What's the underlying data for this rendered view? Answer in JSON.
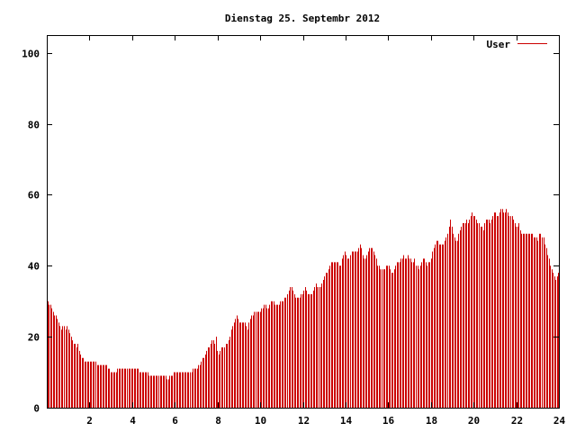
{
  "chart_data": {
    "type": "bar",
    "title": "Dienstag 25. Septembr 2012",
    "xlabel": "",
    "ylabel": "",
    "xlim": [
      0,
      24
    ],
    "ylim": [
      0,
      105
    ],
    "xticks": [
      2,
      4,
      6,
      8,
      10,
      12,
      14,
      16,
      18,
      20,
      22,
      24
    ],
    "yticks": [
      0,
      20,
      40,
      60,
      80,
      100
    ],
    "grid": false,
    "legend_position": "top-right",
    "series": [
      {
        "name": "User",
        "color": "#cc0000",
        "values": [
          30,
          29,
          29,
          28,
          27,
          26,
          26,
          25,
          24,
          23,
          22,
          23,
          23,
          22,
          23,
          22,
          21,
          20,
          19,
          18,
          18,
          17,
          18,
          16,
          15,
          14,
          14,
          13,
          13,
          13,
          13,
          13,
          13,
          13,
          13,
          13,
          12,
          12,
          12,
          12,
          12,
          12,
          12,
          12,
          11,
          11,
          10,
          10,
          10,
          10,
          10,
          11,
          11,
          11,
          11,
          11,
          11,
          11,
          11,
          11,
          11,
          11,
          11,
          11,
          11,
          11,
          11,
          10,
          10,
          10,
          10,
          10,
          10,
          10,
          9,
          9,
          9,
          9,
          9,
          9,
          9,
          9,
          9,
          9,
          9,
          9,
          9,
          8,
          8,
          9,
          9,
          9,
          10,
          10,
          10,
          10,
          10,
          10,
          10,
          10,
          10,
          10,
          10,
          10,
          10,
          10,
          11,
          11,
          11,
          11,
          12,
          12,
          13,
          14,
          14,
          15,
          16,
          17,
          17,
          18,
          19,
          19,
          18,
          20,
          16,
          15,
          16,
          17,
          17,
          17,
          18,
          18,
          19,
          20,
          22,
          23,
          24,
          25,
          26,
          25,
          24,
          24,
          24,
          24,
          24,
          23,
          22,
          24,
          25,
          26,
          26,
          27,
          27,
          27,
          27,
          27,
          28,
          28,
          29,
          29,
          28,
          28,
          29,
          30,
          30,
          30,
          29,
          29,
          29,
          29,
          30,
          30,
          30,
          31,
          31,
          32,
          33,
          34,
          34,
          33,
          32,
          31,
          31,
          31,
          31,
          32,
          32,
          33,
          34,
          33,
          32,
          32,
          32,
          32,
          33,
          34,
          35,
          34,
          34,
          34,
          35,
          36,
          37,
          38,
          38,
          39,
          40,
          41,
          41,
          41,
          41,
          41,
          41,
          40,
          40,
          42,
          43,
          44,
          43,
          42,
          42,
          43,
          44,
          44,
          44,
          44,
          44,
          45,
          46,
          45,
          43,
          42,
          42,
          43,
          44,
          45,
          45,
          45,
          44,
          43,
          42,
          40,
          40,
          39,
          39,
          39,
          39,
          40,
          40,
          40,
          39,
          38,
          38,
          39,
          40,
          41,
          41,
          41,
          42,
          42,
          43,
          42,
          42,
          43,
          42,
          42,
          41,
          41,
          42,
          40,
          40,
          39,
          40,
          41,
          42,
          42,
          41,
          40,
          41,
          41,
          42,
          44,
          45,
          46,
          47,
          47,
          46,
          46,
          46,
          46,
          47,
          48,
          49,
          51,
          53,
          51,
          49,
          48,
          47,
          47,
          49,
          50,
          51,
          52,
          52,
          52,
          53,
          52,
          53,
          54,
          55,
          54,
          54,
          53,
          52,
          52,
          51,
          51,
          50,
          52,
          53,
          53,
          53,
          52,
          53,
          54,
          55,
          55,
          54,
          54,
          55,
          56,
          56,
          55,
          55,
          56,
          55,
          54,
          54,
          54,
          53,
          52,
          51,
          51,
          52,
          50,
          49,
          49,
          49,
          49,
          49,
          49,
          49,
          49,
          49,
          48,
          48,
          48,
          47,
          49,
          49,
          48,
          48,
          46,
          45,
          43,
          42,
          40,
          39,
          38,
          37,
          36,
          37,
          38
        ]
      }
    ]
  }
}
